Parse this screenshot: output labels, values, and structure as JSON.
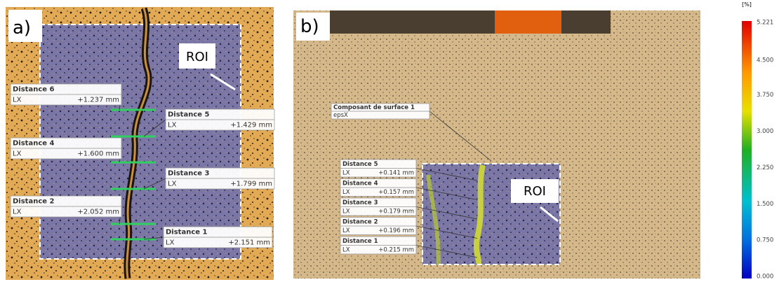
{
  "panels": [
    {
      "label": "a)",
      "roi": "ROI",
      "annotations": [
        {
          "title": "Distance 6",
          "measure": "LX",
          "value": "+1.237 mm"
        },
        {
          "title": "Distance 5",
          "measure": "LX",
          "value": "+1.429 mm"
        },
        {
          "title": "Distance 4",
          "measure": "LX",
          "value": "+1.600 mm"
        },
        {
          "title": "Distance 3",
          "measure": "LX",
          "value": "+1.799 mm"
        },
        {
          "title": "Distance 2",
          "measure": "LX",
          "value": "+2.052 mm"
        },
        {
          "title": "Distance 1",
          "measure": "LX",
          "value": "+2.151 mm"
        }
      ]
    },
    {
      "label": "b)",
      "roi": "ROI",
      "surface": {
        "title": "Composant de surface 1",
        "measure": "epsX"
      },
      "annotations": [
        {
          "title": "Distance 5",
          "measure": "LX",
          "value": "+0.141 mm"
        },
        {
          "title": "Distance 4",
          "measure": "LX",
          "value": "+0.157 mm"
        },
        {
          "title": "Distance 3",
          "measure": "LX",
          "value": "+0.179 mm"
        },
        {
          "title": "Distance 2",
          "measure": "LX",
          "value": "+0.196 mm"
        },
        {
          "title": "Distance 1",
          "measure": "LX",
          "value": "+0.215 mm"
        }
      ]
    }
  ],
  "colorbar": {
    "unit": "[%]",
    "ticks": [
      "5.221",
      "4.500",
      "3.750",
      "3.000",
      "2.250",
      "1.500",
      "0.750",
      "0.000"
    ]
  }
}
